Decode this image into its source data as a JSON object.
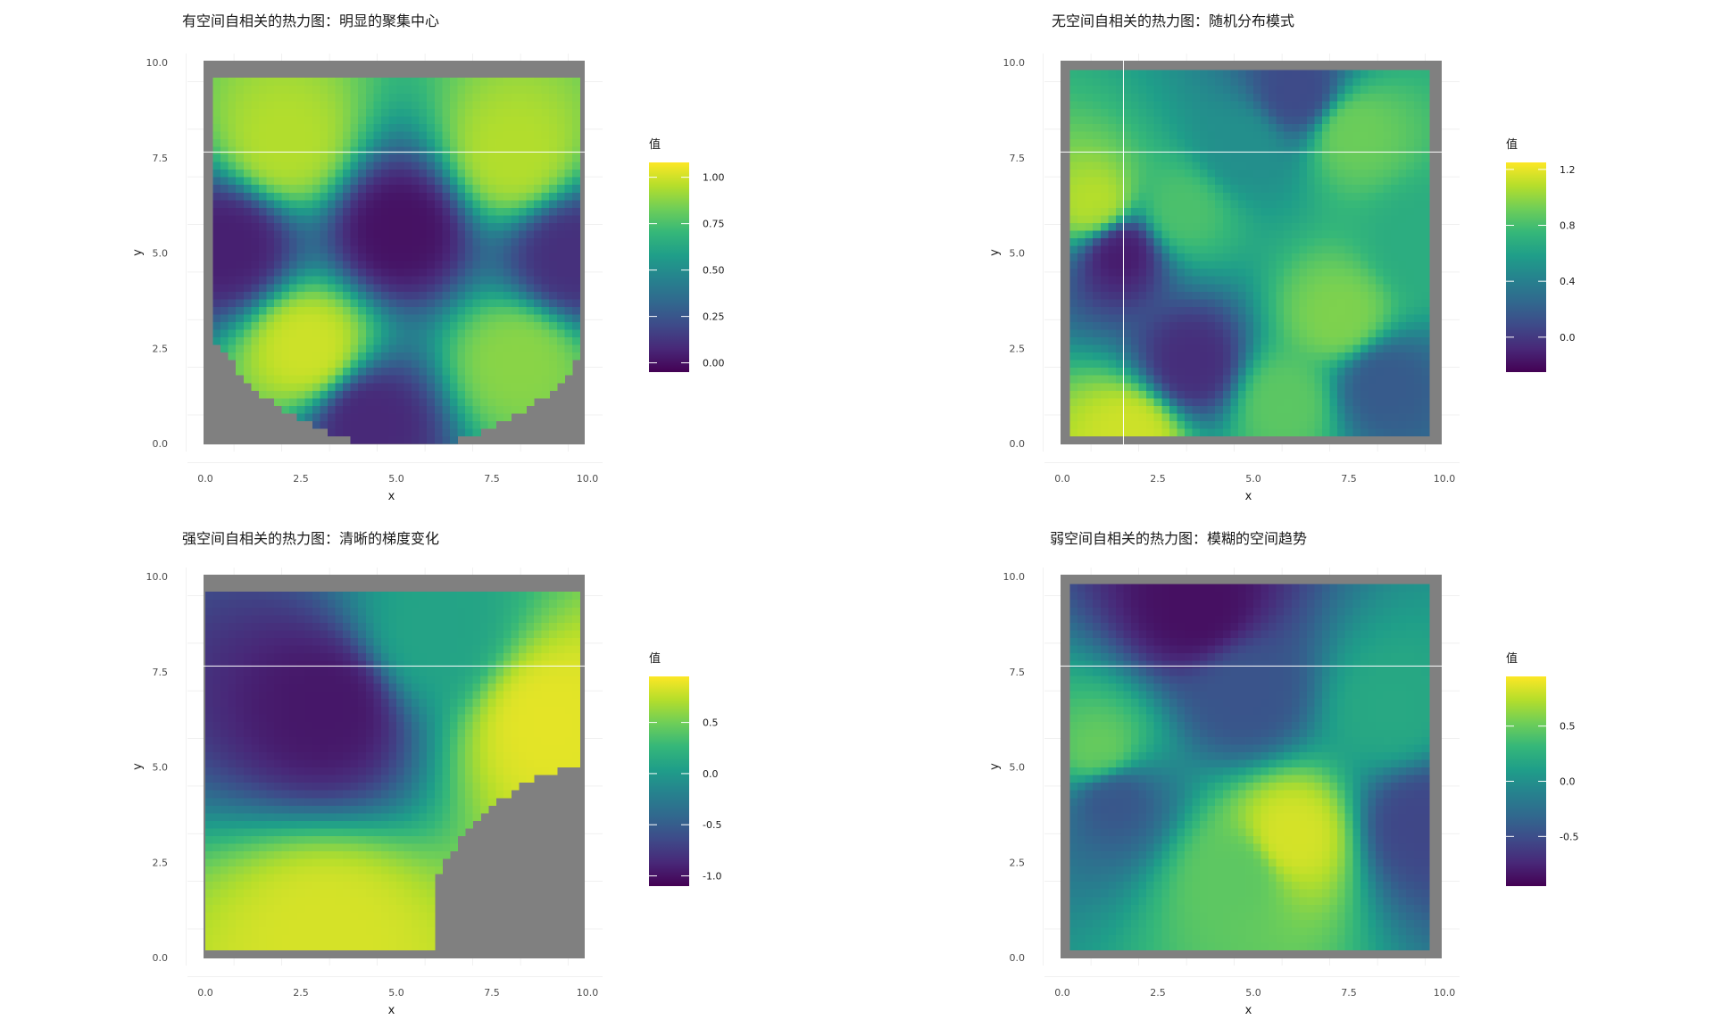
{
  "chart_data": [
    {
      "type": "heatmap",
      "title": "有空间自相关的热力图：明显的聚集中心",
      "xlabel": "x",
      "ylabel": "y",
      "xlim": [
        0,
        10
      ],
      "ylim": [
        0,
        10
      ],
      "x_ticks": [
        "0.0",
        "2.5",
        "5.0",
        "7.5",
        "10.0"
      ],
      "y_ticks": [
        "0.0",
        "2.5",
        "5.0",
        "7.5",
        "10.0"
      ],
      "legend": {
        "title": "值",
        "min": -0.05,
        "max": 1.08,
        "ticks": [
          "0.00",
          "0.25",
          "0.50",
          "0.75",
          "1.00"
        ],
        "tick_values": [
          0,
          0.25,
          0.5,
          0.75,
          1.0
        ]
      },
      "panel_background": "#808080",
      "colormap": "viridis",
      "centers": [
        {
          "x": 2.1,
          "y": 7.9,
          "value": 1.0
        },
        {
          "x": 8.1,
          "y": 7.6,
          "value": 1.0
        },
        {
          "x": 2.7,
          "y": 2.5,
          "value": 1.05
        },
        {
          "x": 8.2,
          "y": 2.2,
          "value": 0.92
        },
        {
          "x": 5.1,
          "y": 5.6,
          "value": -0.03
        },
        {
          "x": 0.6,
          "y": 5.2,
          "value": 0.02
        },
        {
          "x": 4.3,
          "y": 0.6,
          "value": 0.05
        },
        {
          "x": 9.6,
          "y": 4.9,
          "value": 0.08
        }
      ],
      "baseline": 0.38
    },
    {
      "type": "heatmap",
      "title": "无空间自相关的热力图：随机分布模式",
      "xlabel": "x",
      "ylabel": "y",
      "xlim": [
        0,
        10
      ],
      "ylim": [
        0,
        10
      ],
      "x_ticks": [
        "0.0",
        "2.5",
        "5.0",
        "7.5",
        "10.0"
      ],
      "y_ticks": [
        "0.0",
        "2.5",
        "5.0",
        "7.5",
        "10.0"
      ],
      "legend": {
        "title": "值",
        "min": -0.25,
        "max": 1.25,
        "ticks": [
          "1.2",
          "0.8",
          "0.4",
          "0.0"
        ],
        "tick_values": [
          1.2,
          0.8,
          0.4,
          0.0
        ]
      },
      "panel_background": "#808080",
      "colormap": "viridis",
      "centers": [
        {
          "x": 0.9,
          "y": 6.2,
          "value": 1.15
        },
        {
          "x": 1.5,
          "y": 5.1,
          "value": -0.2
        },
        {
          "x": 3.4,
          "y": 2.1,
          "value": -0.1
        },
        {
          "x": 7.3,
          "y": 3.3,
          "value": 1.0
        },
        {
          "x": 7.6,
          "y": 8.2,
          "value": 0.95
        },
        {
          "x": 6.2,
          "y": 9.2,
          "value": 0.05
        },
        {
          "x": 4.7,
          "y": 7.8,
          "value": 0.5
        },
        {
          "x": 9.4,
          "y": 5.2,
          "value": 0.7
        },
        {
          "x": 1.8,
          "y": 0.3,
          "value": 1.2
        },
        {
          "x": 5.8,
          "y": 1.1,
          "value": 0.9
        },
        {
          "x": 8.4,
          "y": 1.6,
          "value": 0.15
        },
        {
          "x": 3.1,
          "y": 6.1,
          "value": 0.85
        }
      ],
      "baseline": 0.45
    },
    {
      "type": "heatmap",
      "title": "强空间自相关的热力图：清晰的梯度变化",
      "xlabel": "x",
      "ylabel": "y",
      "xlim": [
        0,
        10
      ],
      "ylim": [
        0,
        10
      ],
      "x_ticks": [
        "0.0",
        "2.5",
        "5.0",
        "7.5",
        "10.0"
      ],
      "y_ticks": [
        "0.0",
        "2.5",
        "5.0",
        "7.5",
        "10.0"
      ],
      "legend": {
        "title": "值",
        "min": -1.1,
        "max": 0.95,
        "ticks": [
          "0.5",
          "0.0",
          "-0.5",
          "-1.0"
        ],
        "tick_values": [
          0.5,
          0.0,
          -0.5,
          -1.0
        ]
      },
      "panel_background": "#808080",
      "colormap": "viridis",
      "centers": [
        {
          "x": 3.2,
          "y": 6.6,
          "value": -1.05
        },
        {
          "x": 9.0,
          "y": 6.2,
          "value": 0.95
        },
        {
          "x": 3.2,
          "y": 0.6,
          "value": 0.9
        },
        {
          "x": 6.0,
          "y": 8.5,
          "value": 0.1
        }
      ],
      "baseline": -0.05
    },
    {
      "type": "heatmap",
      "title": "弱空间自相关的热力图：模糊的空间趋势",
      "xlabel": "x",
      "ylabel": "y",
      "xlim": [
        0,
        10
      ],
      "ylim": [
        0,
        10
      ],
      "x_ticks": [
        "0.0",
        "2.5",
        "5.0",
        "7.5",
        "10.0"
      ],
      "y_ticks": [
        "0.0",
        "2.5",
        "5.0",
        "7.5",
        "10.0"
      ],
      "legend": {
        "title": "值",
        "min": -0.95,
        "max": 0.95,
        "ticks": [
          "0.5",
          "0.0",
          "-0.5"
        ],
        "tick_values": [
          0.5,
          0.0,
          -0.5
        ]
      },
      "panel_background": "#808080",
      "colormap": "viridis",
      "centers": [
        {
          "x": 3.5,
          "y": 9.2,
          "value": -0.95
        },
        {
          "x": 6.0,
          "y": 3.2,
          "value": 0.9
        },
        {
          "x": 1.0,
          "y": 5.3,
          "value": 0.55
        },
        {
          "x": 9.4,
          "y": 3.5,
          "value": -0.6
        },
        {
          "x": 1.3,
          "y": 4.3,
          "value": -0.5
        },
        {
          "x": 4.8,
          "y": 6.9,
          "value": -0.5
        },
        {
          "x": 4.6,
          "y": 2.2,
          "value": 0.5
        },
        {
          "x": 8.6,
          "y": 6.5,
          "value": 0.2
        }
      ],
      "baseline": 0.05
    }
  ]
}
